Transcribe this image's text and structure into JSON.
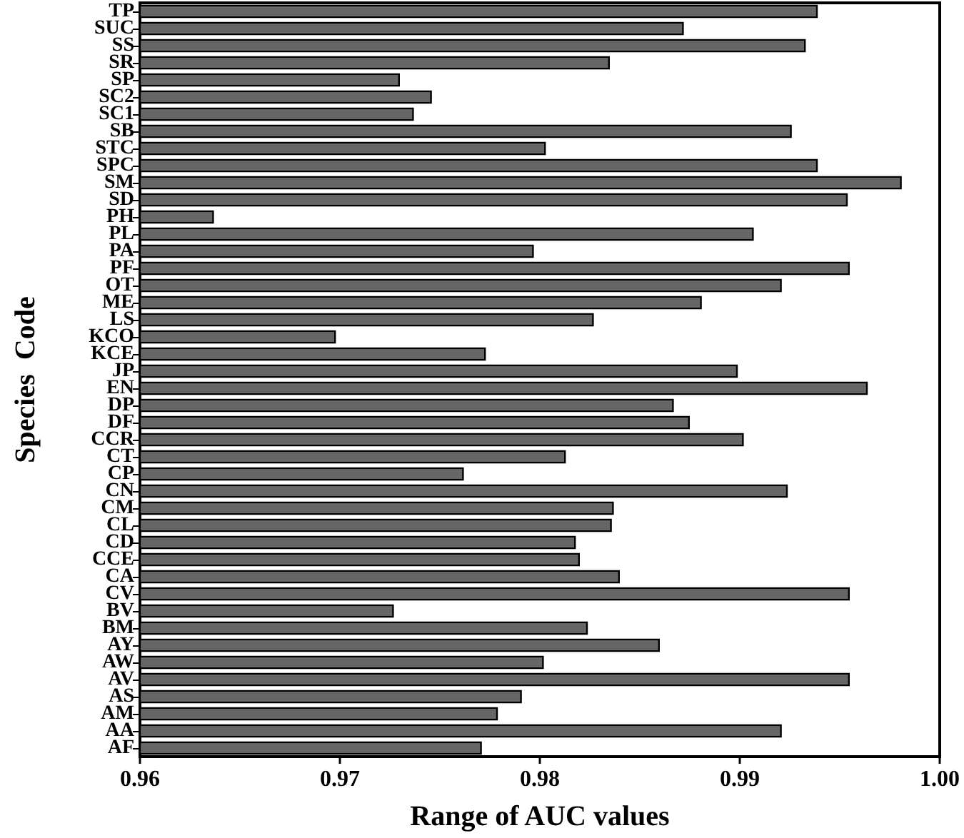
{
  "chart_data": {
    "type": "bar",
    "orientation": "horizontal",
    "xlabel": "Range of AUC values",
    "ylabel": "Species  Code",
    "categories": [
      "TP",
      "SUC",
      "SS",
      "SR",
      "SP",
      "SC2",
      "SC1",
      "SB",
      "STC",
      "SPC",
      "SM",
      "SD",
      "PH",
      "PL",
      "PA",
      "PF",
      "OT",
      "ME",
      "LS",
      "KCO",
      "KCE",
      "JP",
      "EN",
      "DP",
      "DF",
      "CCR",
      "CT",
      "CP",
      "CN",
      "CM",
      "CL",
      "CD",
      "CCE",
      "CA",
      "CV",
      "BV",
      "BM",
      "AY",
      "AW",
      "AV",
      "AS",
      "AM",
      "AA",
      "AF"
    ],
    "values": [
      0.9939,
      0.9872,
      0.9933,
      0.9835,
      0.973,
      0.9746,
      0.9737,
      0.9926,
      0.9803,
      0.9939,
      0.9981,
      0.9954,
      0.9637,
      0.9907,
      0.9797,
      0.9955,
      0.9921,
      0.9881,
      0.9827,
      0.9698,
      0.9773,
      0.9899,
      0.9964,
      0.9867,
      0.9875,
      0.9902,
      0.9813,
      0.9762,
      0.9924,
      0.9837,
      0.9836,
      0.9818,
      0.982,
      0.984,
      0.9955,
      0.9727,
      0.9824,
      0.986,
      0.9802,
      0.9955,
      0.9791,
      0.9779,
      0.9921,
      0.9771
    ],
    "color": "#666666",
    "xlim": [
      0.96,
      1.0
    ],
    "xticks": [
      0.96,
      0.97,
      0.98,
      0.99,
      {
        "value": 1.0,
        "label": "1.00"
      }
    ],
    "grid": false
  }
}
